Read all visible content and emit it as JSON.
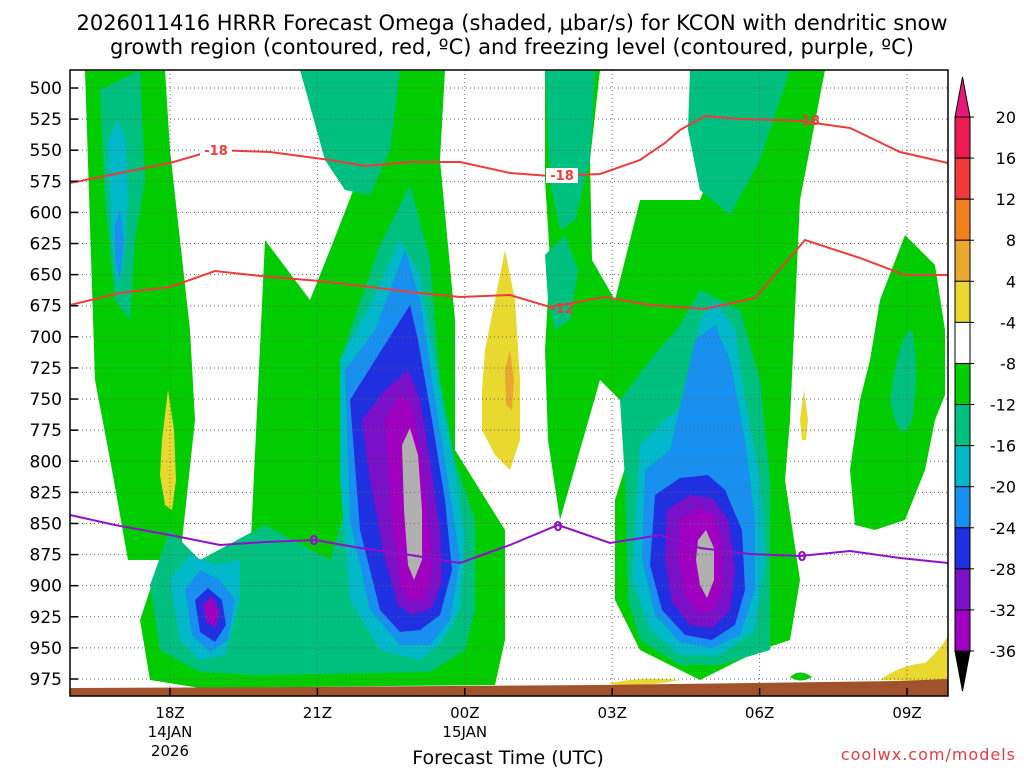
{
  "chart_data": {
    "type": "heatmap",
    "title_line1": "2026011416 HRRR Forecast Omega (shaded, μbar/s) for KCON with dendritic snow",
    "title_line2": "growth region (contoured, red, ºC) and freezing level (contoured, purple, ºC)",
    "xlabel": "Forecast Time (UTC)",
    "credit": "coolwx.com/models",
    "y_axis": {
      "ticks": [
        500,
        525,
        550,
        575,
        600,
        625,
        650,
        675,
        700,
        725,
        750,
        775,
        800,
        825,
        850,
        875,
        900,
        925,
        950,
        975
      ],
      "inverted": true,
      "grid": "dotted"
    },
    "x_axis": {
      "ticks": [
        {
          "hour": 18,
          "lines": [
            "18Z",
            "14JAN",
            "2026"
          ]
        },
        {
          "hour": 21,
          "lines": [
            "21Z"
          ]
        },
        {
          "hour": 24,
          "lines": [
            "00Z",
            "15JAN"
          ]
        },
        {
          "hour": 27,
          "lines": [
            "03Z"
          ]
        },
        {
          "hour": 30,
          "lines": [
            "06Z"
          ]
        },
        {
          "hour": 33,
          "lines": [
            "09Z"
          ]
        }
      ],
      "range_hours": [
        16,
        34
      ],
      "grid": "dotted"
    },
    "colorbar": {
      "labels": [
        "20",
        "16",
        "12",
        "8",
        "4",
        "-4",
        "-8",
        "-12",
        "-16",
        "-20",
        "-24",
        "-28",
        "-32",
        "-36"
      ],
      "levels": [
        20,
        16,
        12,
        8,
        4,
        -4,
        -8,
        -12,
        -16,
        -20,
        -24,
        -28,
        -32,
        -36
      ],
      "colors": [
        "#ee1b50",
        "#f03a3a",
        "#f08020",
        "#e8a830",
        "#e8d830",
        "#ffffff",
        "#00cc00",
        "#00c080",
        "#00b8c8",
        "#1890f0",
        "#2030e0",
        "#7a10c8",
        "#a000c0",
        "#b0b0b0"
      ],
      "top_arrow_color": "#e8187a",
      "bottom_arrow_color": "#000000"
    },
    "contours": {
      "dgz_labels": [
        "-18",
        "-18",
        "-18",
        "-12"
      ],
      "freezing_labels": [
        "0",
        "0",
        "0"
      ],
      "dgz_color": "#ee3b3b",
      "freezing_color": "#9010c8"
    },
    "terrain_color": "#a0522d"
  }
}
